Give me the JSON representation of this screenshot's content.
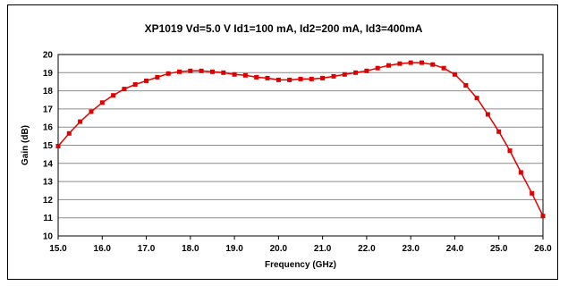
{
  "chart_data": {
    "type": "line",
    "title": "XP1019 Vd=5.0 V Id1=100 mA, Id2=200 mA, Id3=400mA",
    "xlabel": "Frequency (GHz)",
    "ylabel": "Gain (dB)",
    "xlim": [
      15.0,
      26.0
    ],
    "ylim": [
      10,
      20
    ],
    "x_ticks": [
      "15.0",
      "16.0",
      "17.0",
      "18.0",
      "19.0",
      "20.0",
      "21.0",
      "22.0",
      "23.0",
      "24.0",
      "25.0",
      "26.0"
    ],
    "y_ticks": [
      "10",
      "11",
      "12",
      "13",
      "14",
      "15",
      "16",
      "17",
      "18",
      "19",
      "20"
    ],
    "grid": "horizontal",
    "series": [
      {
        "color": "#e00000",
        "marker": "square",
        "x": [
          15.0,
          15.25,
          15.5,
          15.75,
          16.0,
          16.25,
          16.5,
          16.75,
          17.0,
          17.25,
          17.5,
          17.75,
          18.0,
          18.25,
          18.5,
          18.75,
          19.0,
          19.25,
          19.5,
          19.75,
          20.0,
          20.25,
          20.5,
          20.75,
          21.0,
          21.25,
          21.5,
          21.75,
          22.0,
          22.25,
          22.5,
          22.75,
          23.0,
          23.25,
          23.5,
          23.75,
          24.0,
          24.25,
          24.5,
          24.75,
          25.0,
          25.25,
          25.5,
          25.75,
          26.0
        ],
        "y": [
          14.95,
          15.65,
          16.3,
          16.85,
          17.35,
          17.75,
          18.1,
          18.35,
          18.55,
          18.75,
          18.95,
          19.05,
          19.1,
          19.1,
          19.05,
          19.0,
          18.9,
          18.85,
          18.75,
          18.7,
          18.6,
          18.6,
          18.65,
          18.65,
          18.7,
          18.8,
          18.9,
          19.0,
          19.1,
          19.25,
          19.4,
          19.5,
          19.55,
          19.55,
          19.45,
          19.25,
          18.9,
          18.3,
          17.6,
          16.7,
          15.75,
          14.7,
          13.5,
          12.35,
          11.1
        ]
      }
    ]
  }
}
